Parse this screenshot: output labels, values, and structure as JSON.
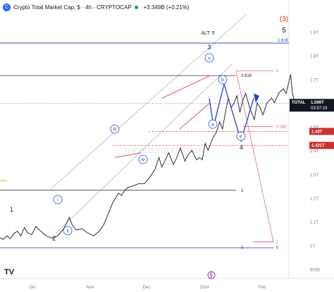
{
  "header": {
    "logo_text": "C",
    "title": "Crypto Total Market Cap, $ · 4h · CRYPTOCAP",
    "change": "+3.349B (+0.21%)"
  },
  "colors": {
    "price": "#131722",
    "channel": "#b2b5be",
    "fib": "#1a3fa6",
    "wave_circle": "#2d4bd6",
    "projection": "#1f3fe0",
    "triangle": "#e36e74",
    "level_line": "#000000",
    "level_red": "#d32f2f",
    "dashed_red": "#e53935"
  },
  "chart_data": {
    "type": "line",
    "x_ticks": [
      "Oct",
      "Nov",
      "Dec",
      "2024",
      "Feb"
    ],
    "y_ticks": [
      "1.9T",
      "1.8T",
      "1.7T",
      "1.6T",
      "1.5T",
      "1.4T",
      "1.3T",
      "1.2T",
      "1.1T",
      "1T",
      "900B"
    ],
    "ylim": [
      0.86,
      1.98
    ],
    "series": [
      {
        "values": [
          [
            0.0,
            1.032
          ],
          [
            0.05,
            1.025
          ],
          [
            0.12,
            1.04
          ],
          [
            0.18,
            1.028
          ],
          [
            0.24,
            1.05
          ],
          [
            0.3,
            1.06
          ],
          [
            0.36,
            1.04
          ],
          [
            0.42,
            1.075
          ],
          [
            0.48,
            1.052
          ],
          [
            0.55,
            1.045
          ],
          [
            0.62,
            1.08
          ],
          [
            0.7,
            1.06
          ],
          [
            0.8,
            1.04
          ],
          [
            0.9,
            1.03
          ],
          [
            1.0,
            1.04
          ],
          [
            1.1,
            1.07
          ],
          [
            1.2,
            1.118
          ],
          [
            1.25,
            1.085
          ],
          [
            1.32,
            1.065
          ],
          [
            1.42,
            1.07
          ],
          [
            1.52,
            1.052
          ],
          [
            1.62,
            1.04
          ],
          [
            1.72,
            1.06
          ],
          [
            1.8,
            1.09
          ],
          [
            1.85,
            1.12
          ],
          [
            1.9,
            1.15
          ],
          [
            1.95,
            1.18
          ],
          [
            2.0,
            1.2
          ],
          [
            2.05,
            1.22
          ],
          [
            2.1,
            1.21
          ],
          [
            2.15,
            1.23
          ],
          [
            2.22,
            1.245
          ],
          [
            2.3,
            1.25
          ],
          [
            2.4,
            1.26
          ],
          [
            2.5,
            1.26
          ],
          [
            2.6,
            1.29
          ],
          [
            2.68,
            1.32
          ],
          [
            2.75,
            1.37
          ],
          [
            2.8,
            1.33
          ],
          [
            2.85,
            1.355
          ],
          [
            2.92,
            1.39
          ],
          [
            3.0,
            1.34
          ],
          [
            3.05,
            1.365
          ],
          [
            3.12,
            1.41
          ],
          [
            3.2,
            1.355
          ],
          [
            3.25,
            1.38
          ],
          [
            3.32,
            1.4
          ],
          [
            3.4,
            1.36
          ],
          [
            3.45,
            1.37
          ],
          [
            3.5,
            1.36
          ],
          [
            3.55,
            1.43
          ],
          [
            3.6,
            1.4
          ],
          [
            3.68,
            1.45
          ],
          [
            3.75,
            1.48
          ],
          [
            3.8,
            1.52
          ],
          [
            3.85,
            1.49
          ],
          [
            3.9,
            1.56
          ],
          [
            3.95,
            1.62
          ],
          [
            4.0,
            1.58
          ],
          [
            4.05,
            1.6
          ],
          [
            4.1,
            1.63
          ],
          [
            4.15,
            1.56
          ],
          [
            4.2,
            1.61
          ],
          [
            4.25,
            1.64
          ],
          [
            4.32,
            1.58
          ],
          [
            4.4,
            1.53
          ],
          [
            4.45,
            1.6
          ],
          [
            4.5,
            1.58
          ],
          [
            4.55,
            1.55
          ],
          [
            4.62,
            1.6
          ],
          [
            4.7,
            1.62
          ],
          [
            4.75,
            1.6
          ],
          [
            4.82,
            1.64
          ],
          [
            4.9,
            1.66
          ],
          [
            4.95,
            1.64
          ],
          [
            5.0,
            1.69
          ],
          [
            5.03,
            1.72
          ],
          [
            5.06,
            1.64
          ],
          [
            5.1,
            1.6
          ],
          [
            5.13,
            1.58
          ]
        ]
      }
    ],
    "fib_levels": [
      {
        "label": "1.618",
        "value": 1.852
      },
      {
        "label": "2.618",
        "value": 1.715
      },
      {
        "label": "1",
        "value": 1.232
      },
      {
        "label": "0",
        "value": 1.735
      },
      {
        "label": "0.382",
        "value": 1.5
      },
      {
        "label": "1",
        "value": 1.015
      },
      {
        "label": "0",
        "value": 0.99
      }
    ],
    "price_labels": [
      {
        "name": "TOTAL",
        "value": "1.599T",
        "sub": "03:57:19",
        "y": 1.599
      },
      {
        "name": "",
        "value": "1.48T",
        "sub": "",
        "y": 1.48
      },
      {
        "name": "",
        "value": "1.421T",
        "sub": "",
        "y": 1.421
      }
    ],
    "wave_labels": {
      "major": [
        "(3)",
        "5",
        "ALT: 5",
        "3",
        "1",
        "2",
        "4"
      ],
      "minor": [
        "i",
        "ii",
        "iii",
        "iv",
        "v",
        "a",
        "b",
        "e"
      ]
    },
    "watermark": "wavetraders.com",
    "footer_logo": "TV"
  }
}
